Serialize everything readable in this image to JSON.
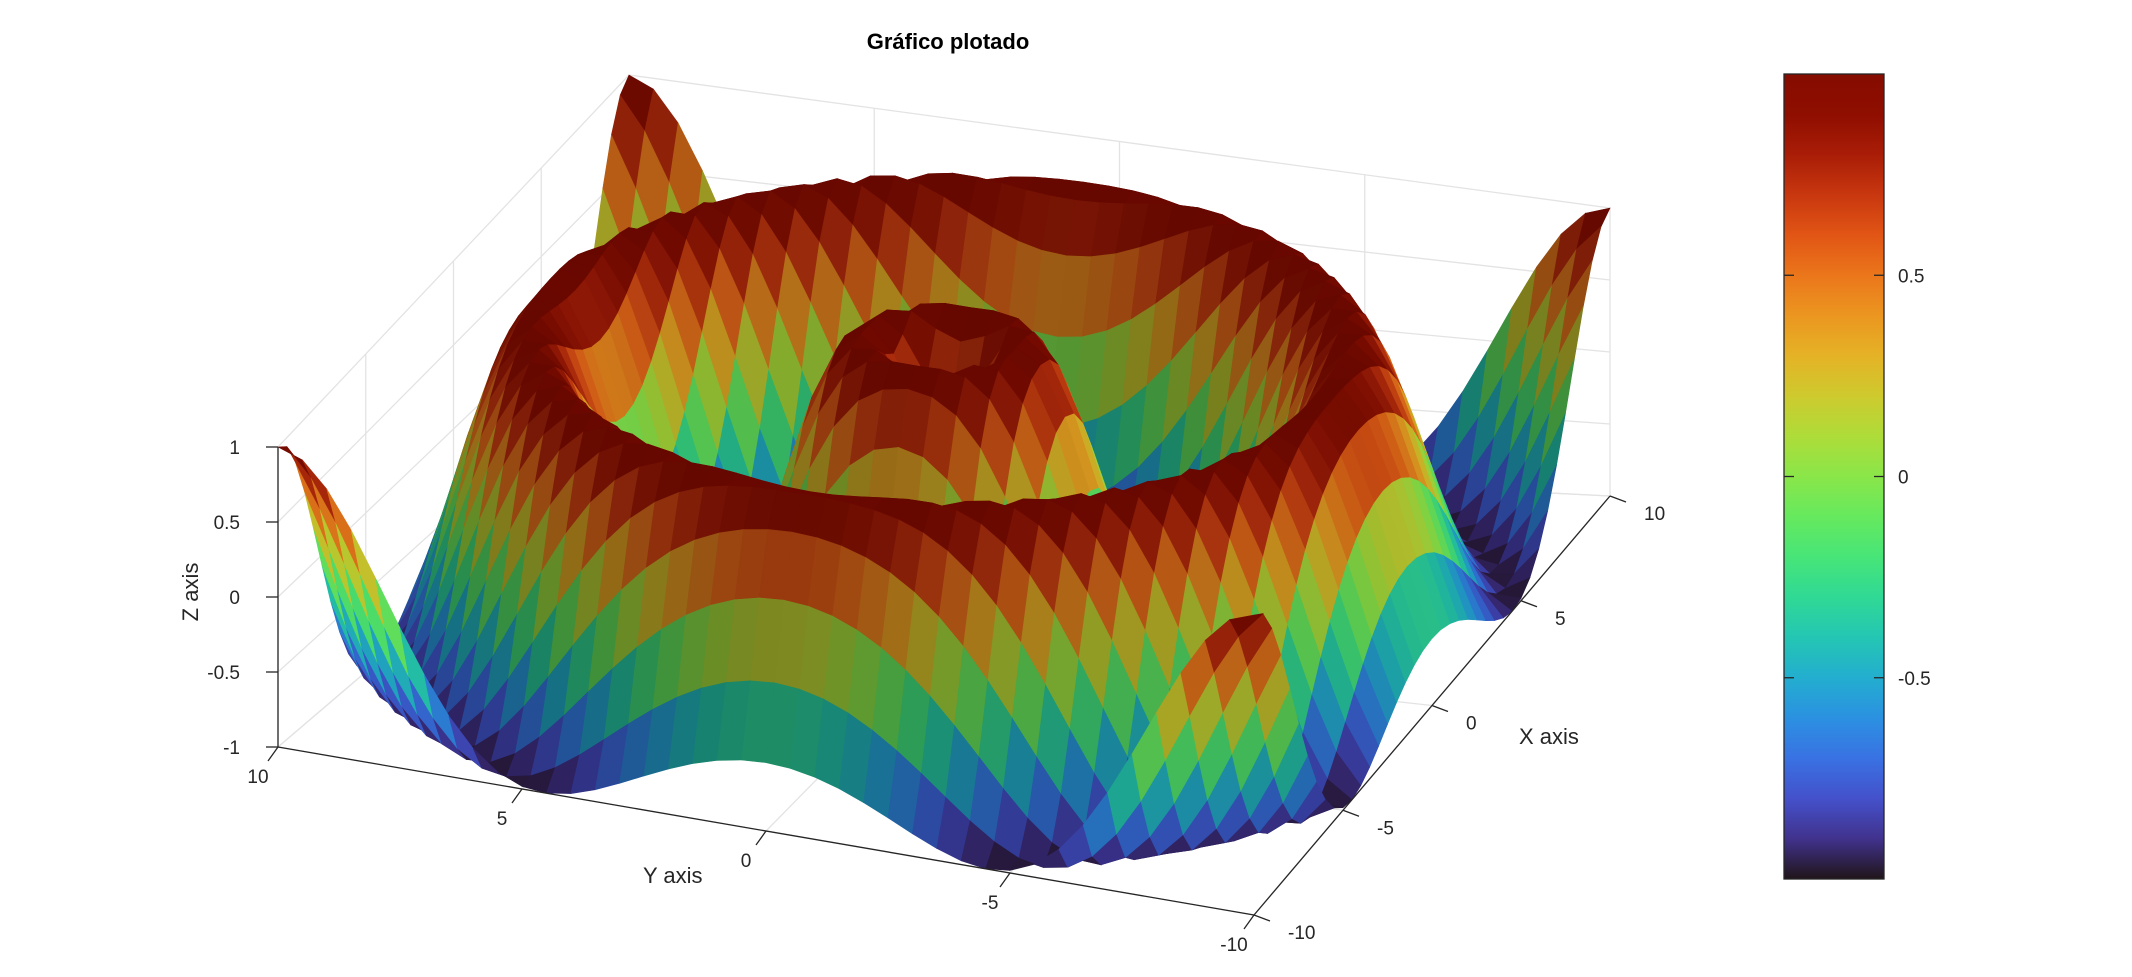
{
  "chart_data": {
    "type": "surface",
    "title": "Gráfico plotado",
    "xlabel": "X axis",
    "ylabel": "Y axis",
    "zlabel": "Z axis",
    "xlim": [
      -10,
      10
    ],
    "ylim": [
      -10,
      10
    ],
    "zlim": [
      -1,
      1
    ],
    "x_ticks": [
      -10,
      -5,
      0,
      5,
      10
    ],
    "y_ticks": [
      -10,
      -5,
      0,
      5,
      10
    ],
    "z_ticks": [
      -1,
      -0.5,
      0,
      0.5,
      1
    ],
    "x_tick_labels": [
      "-10",
      "-5",
      "0",
      "5",
      "10"
    ],
    "y_tick_labels": [
      "-10",
      "-5",
      "0",
      "5",
      "10"
    ],
    "z_tick_labels": [
      "-1",
      "-0.5",
      "0",
      "0.5",
      "1"
    ],
    "function": "z = sin(sqrt(x^2 + y^2))",
    "grid_samples": 40,
    "grid": true,
    "colormap": "turbo",
    "colorbar": {
      "limits": [
        -1,
        1
      ],
      "ticks": [
        -0.5,
        0,
        0.5
      ],
      "tick_labels": [
        "-0.5",
        "0",
        "0.5"
      ],
      "placement": "right"
    }
  }
}
